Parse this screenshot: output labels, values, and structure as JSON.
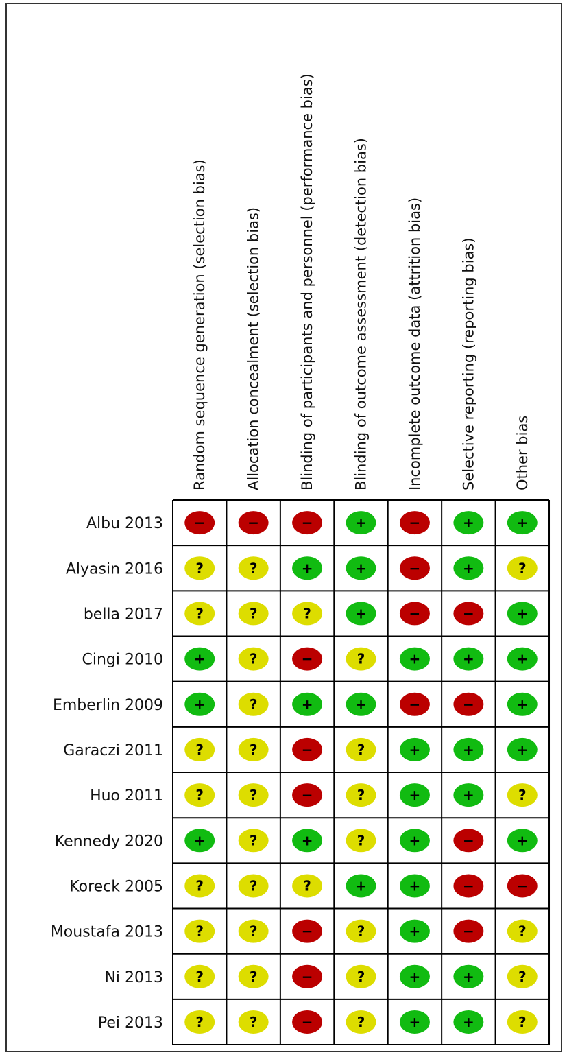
{
  "chart_data": {
    "type": "table",
    "domains": [
      "Random sequence generation (selection bias)",
      "Allocation concealment (selection bias)",
      "Blinding of participants and personnel (performance bias)",
      "Blinding of outcome assessment (detection bias)",
      "Incomplete outcome data (attrition bias)",
      "Selective reporting (reporting bias)",
      "Other bias"
    ],
    "studies": [
      {
        "name": "Albu 2013",
        "ratings": [
          "high",
          "high",
          "high",
          "low",
          "high",
          "low",
          "low"
        ]
      },
      {
        "name": "Alyasin 2016",
        "ratings": [
          "unclear",
          "unclear",
          "low",
          "low",
          "high",
          "low",
          "unclear"
        ]
      },
      {
        "name": "bella 2017",
        "ratings": [
          "unclear",
          "unclear",
          "unclear",
          "low",
          "high",
          "high",
          "low"
        ]
      },
      {
        "name": "Cingi 2010",
        "ratings": [
          "low",
          "unclear",
          "high",
          "unclear",
          "low",
          "low",
          "low"
        ]
      },
      {
        "name": "Emberlin 2009",
        "ratings": [
          "low",
          "unclear",
          "low",
          "low",
          "high",
          "high",
          "low"
        ]
      },
      {
        "name": "Garaczi 2011",
        "ratings": [
          "unclear",
          "unclear",
          "high",
          "unclear",
          "low",
          "low",
          "low"
        ]
      },
      {
        "name": "Huo 2011",
        "ratings": [
          "unclear",
          "unclear",
          "high",
          "unclear",
          "low",
          "low",
          "unclear"
        ]
      },
      {
        "name": "Kennedy 2020",
        "ratings": [
          "low",
          "unclear",
          "low",
          "unclear",
          "low",
          "high",
          "low"
        ]
      },
      {
        "name": "Koreck 2005",
        "ratings": [
          "unclear",
          "unclear",
          "unclear",
          "low",
          "low",
          "high",
          "high"
        ]
      },
      {
        "name": "Moustafa 2013",
        "ratings": [
          "unclear",
          "unclear",
          "high",
          "unclear",
          "low",
          "high",
          "unclear"
        ]
      },
      {
        "name": "Ni 2013",
        "ratings": [
          "unclear",
          "unclear",
          "high",
          "unclear",
          "low",
          "low",
          "unclear"
        ]
      },
      {
        "name": "Pei 2013",
        "ratings": [
          "unclear",
          "unclear",
          "high",
          "unclear",
          "low",
          "low",
          "unclear"
        ]
      }
    ],
    "symbols": {
      "low": {
        "glyph": "+",
        "color": "#11bb11"
      },
      "high": {
        "glyph": "−",
        "color": "#bb0000"
      },
      "unclear": {
        "glyph": "?",
        "color": "#dddd00"
      }
    }
  }
}
